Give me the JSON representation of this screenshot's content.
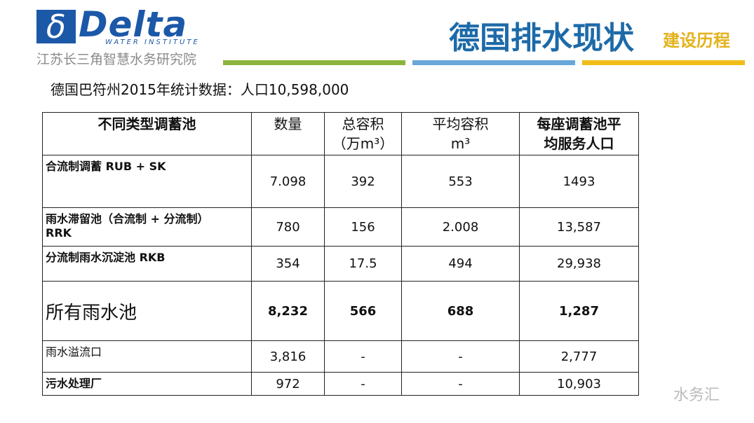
{
  "header": {
    "logo_symbol": "δ",
    "logo": "Delta",
    "logo_tagline": "WATER INSTITUTE",
    "institute": "江苏长三角智慧水务研究院",
    "title": "德国排水现状",
    "subtitle": "建设历程"
  },
  "stats_line": "德国巴符州2015年统计数据：人口10,598,000",
  "table": {
    "header": [
      "不同类型调蓄池",
      "数量",
      "总容积\n（万m³）",
      "平均容积\nm³",
      "每座调蓄池平\n均服务人口"
    ],
    "rows": [
      [
        "合流制调蓄 RUB + SK",
        "7.098",
        "392",
        "553",
        "1493"
      ],
      [
        "雨水滞留池（合流制 + 分流制）\nRRK",
        "780",
        "156",
        "2.008",
        "13,587"
      ],
      [
        "分流制雨水沉淀池 RKB",
        "354",
        "17.5",
        "494",
        "29,938"
      ],
      [
        "所有雨水池",
        "8,232",
        "566",
        "688",
        "1,287"
      ],
      [
        "雨水溢流口",
        "3,816",
        "-",
        "-",
        "2,777"
      ],
      [
        "污水处理厂",
        "972",
        "-",
        "-",
        "10,903"
      ]
    ]
  },
  "watermark": "水务汇"
}
